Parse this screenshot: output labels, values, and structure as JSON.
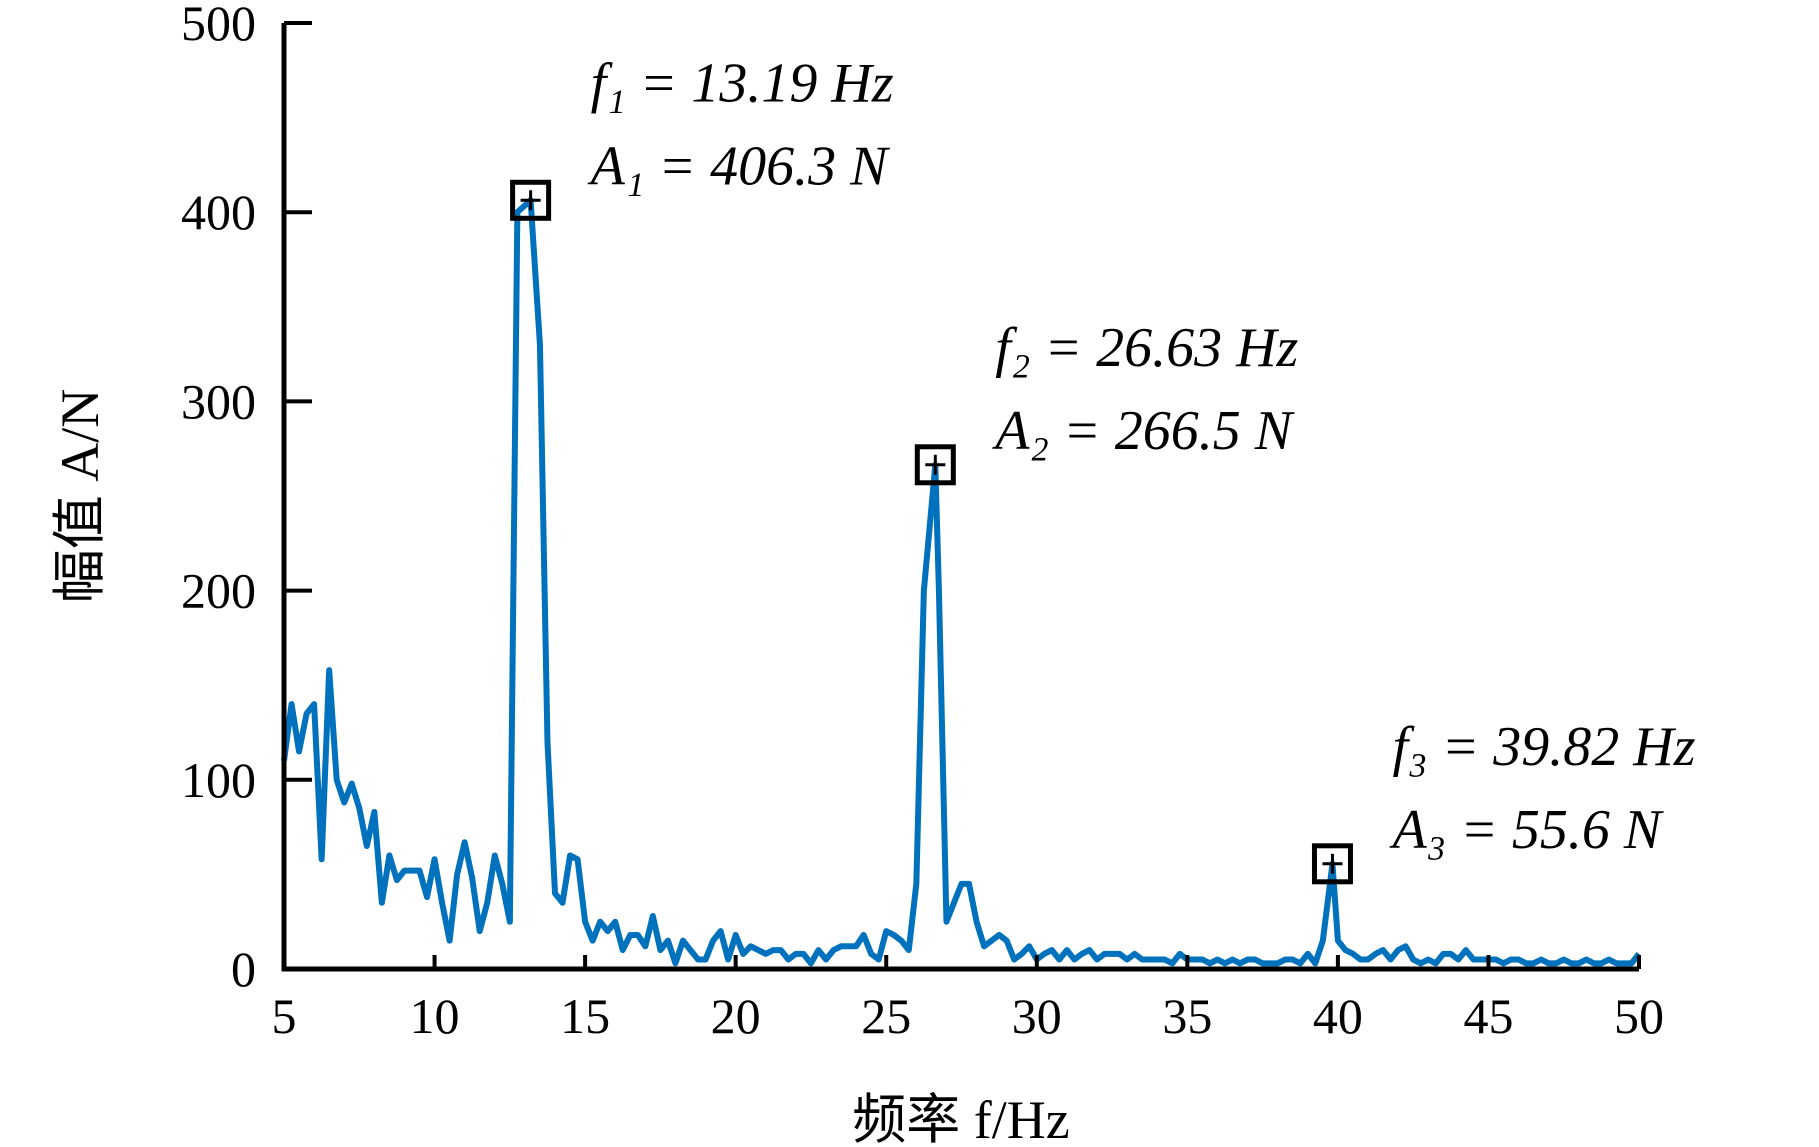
{
  "chart_data": {
    "type": "line",
    "x_label": "频率 f/Hz",
    "y_label": "幅值 A/N",
    "xlim": [
      5,
      50
    ],
    "xticks": [
      5,
      10,
      15,
      20,
      25,
      30,
      35,
      40,
      45,
      50
    ],
    "ylim": [
      0,
      500
    ],
    "yticks": [
      0,
      100,
      200,
      300,
      400,
      500
    ],
    "series": [
      {
        "color": "#0072bd",
        "x": [
          5,
          5.25,
          5.5,
          5.75,
          6,
          6.25,
          6.5,
          6.75,
          7,
          7.25,
          7.5,
          7.75,
          8,
          8.25,
          8.5,
          8.75,
          9,
          9.25,
          9.5,
          9.75,
          10,
          10.25,
          10.5,
          10.75,
          11,
          11.25,
          11.5,
          11.75,
          12,
          12.25,
          12.5,
          12.75,
          13.19,
          13.5,
          13.75,
          14,
          14.25,
          14.5,
          14.75,
          15,
          15.25,
          15.5,
          15.75,
          16,
          16.25,
          16.5,
          16.75,
          17,
          17.25,
          17.5,
          17.75,
          18,
          18.25,
          18.5,
          18.75,
          19,
          19.25,
          19.5,
          19.75,
          20,
          20.25,
          20.5,
          20.75,
          21,
          21.25,
          21.5,
          21.75,
          22,
          22.25,
          22.5,
          22.75,
          23,
          23.25,
          23.5,
          23.75,
          24,
          24.25,
          24.5,
          24.75,
          25,
          25.25,
          25.5,
          25.75,
          26,
          26.25,
          26.63,
          26.75,
          27,
          27.25,
          27.5,
          27.75,
          28,
          28.25,
          28.5,
          28.75,
          29,
          29.25,
          29.5,
          29.75,
          30,
          30.25,
          30.5,
          30.75,
          31,
          31.25,
          31.5,
          31.75,
          32,
          32.25,
          32.5,
          32.75,
          33,
          33.25,
          33.5,
          33.75,
          34,
          34.25,
          34.5,
          34.75,
          35,
          35.25,
          35.5,
          35.75,
          36,
          36.25,
          36.5,
          36.75,
          37,
          37.25,
          37.5,
          37.75,
          38,
          38.25,
          38.5,
          38.75,
          39,
          39.25,
          39.5,
          39.82,
          40,
          40.25,
          40.5,
          40.75,
          41,
          41.25,
          41.5,
          41.75,
          42,
          42.25,
          42.5,
          42.75,
          43,
          43.25,
          43.5,
          43.75,
          44,
          44.25,
          44.5,
          44.75,
          45,
          45.25,
          45.5,
          45.75,
          46,
          46.25,
          46.5,
          46.75,
          47,
          47.25,
          47.5,
          47.75,
          48,
          48.25,
          48.5,
          48.75,
          49,
          49.25,
          49.5,
          49.75,
          50
        ],
        "values": [
          110,
          140,
          115,
          135,
          140,
          58,
          158,
          100,
          88,
          98,
          85,
          65,
          83,
          35,
          60,
          47,
          52,
          52,
          52,
          38,
          58,
          35,
          15,
          50,
          67,
          48,
          20,
          35,
          60,
          45,
          25,
          400,
          406.3,
          330,
          120,
          40,
          35,
          60,
          58,
          25,
          15,
          25,
          20,
          25,
          10,
          18,
          18,
          12,
          28,
          10,
          15,
          3,
          15,
          10,
          5,
          5,
          15,
          20,
          5,
          18,
          8,
          12,
          10,
          8,
          10,
          10,
          5,
          8,
          8,
          3,
          10,
          5,
          10,
          12,
          12,
          12,
          18,
          8,
          5,
          20,
          18,
          15,
          10,
          45,
          200,
          266.5,
          200,
          25,
          35,
          45,
          45,
          25,
          12,
          15,
          18,
          15,
          5,
          8,
          12,
          5,
          8,
          10,
          5,
          10,
          5,
          8,
          10,
          5,
          8,
          8,
          8,
          5,
          8,
          5,
          5,
          5,
          5,
          3,
          8,
          5,
          5,
          5,
          3,
          5,
          3,
          5,
          3,
          5,
          5,
          3,
          3,
          3,
          5,
          5,
          3,
          8,
          3,
          15,
          55.6,
          15,
          10,
          8,
          5,
          5,
          8,
          10,
          5,
          10,
          12,
          5,
          3,
          5,
          3,
          8,
          8,
          5,
          10,
          5,
          5,
          5,
          5,
          3,
          5,
          5,
          3,
          3,
          5,
          3,
          3,
          5,
          3,
          3,
          5,
          3,
          3,
          5,
          3,
          3,
          3,
          8
        ]
      }
    ],
    "peaks": [
      {
        "x": 13.19,
        "y": 406.3,
        "label_f": "f₁ = 13.19 Hz",
        "label_a": "A₁ = 406.3 N"
      },
      {
        "x": 26.63,
        "y": 266.5,
        "label_f": "f₂ = 26.63 Hz",
        "label_a": "A₂ = 266.5 N"
      },
      {
        "x": 39.82,
        "y": 55.6,
        "label_f": "f₃ = 39.82 Hz",
        "label_a": "A₃ = 55.6 N"
      }
    ]
  }
}
